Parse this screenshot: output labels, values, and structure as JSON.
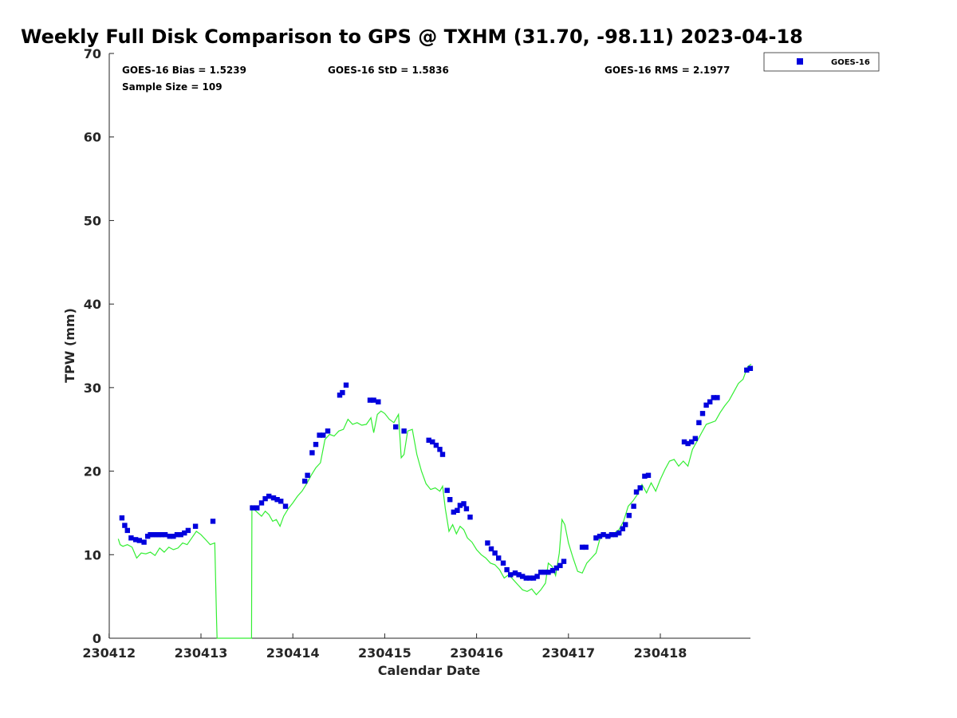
{
  "chart_data": {
    "type": "scatter",
    "title": "Weekly Full Disk Comparison to GPS @ TXHM (31.70, -98.11) 2023-04-18",
    "xlabel": "Calendar Date",
    "ylabel": "TPW (mm)",
    "xlim": [
      230412.0,
      230419.0
    ],
    "ylim": [
      0,
      70
    ],
    "x_ticks": [
      {
        "value": 230412,
        "label": "230412"
      },
      {
        "value": 230413,
        "label": "230413"
      },
      {
        "value": 230414,
        "label": "230414"
      },
      {
        "value": 230415,
        "label": "230415"
      },
      {
        "value": 230416,
        "label": "230416"
      },
      {
        "value": 230417,
        "label": "230417"
      },
      {
        "value": 230418,
        "label": "230418"
      }
    ],
    "y_ticks": [
      {
        "value": 0,
        "label": "0"
      },
      {
        "value": 10,
        "label": "10"
      },
      {
        "value": 20,
        "label": "20"
      },
      {
        "value": 30,
        "label": "30"
      },
      {
        "value": 40,
        "label": "40"
      },
      {
        "value": 50,
        "label": "50"
      },
      {
        "value": 60,
        "label": "60"
      },
      {
        "value": 70,
        "label": "70"
      }
    ],
    "grid": false,
    "legend_position": "outside-top-right",
    "stats": {
      "bias": "GOES-16 Bias = 1.5239",
      "std": "GOES-16 StD = 1.5836",
      "rms": "GOES-16 RMS = 2.1977",
      "sample": "Sample Size = 109"
    },
    "series": [
      {
        "name": "GOES-16",
        "kind": "markers",
        "color": "#0000dd",
        "x": [
          230412.14,
          230412.17,
          230412.2,
          230412.24,
          230412.29,
          230412.33,
          230412.38,
          230412.42,
          230412.45,
          230412.48,
          230412.51,
          230412.54,
          230412.57,
          230412.61,
          230412.66,
          230412.7,
          230412.74,
          230412.78,
          230412.82,
          230412.86,
          230412.94,
          230413.13,
          230413.56,
          230413.61,
          230413.66,
          230413.7,
          230413.74,
          230413.79,
          230413.83,
          230413.87,
          230413.92,
          230414.13,
          230414.16,
          230414.21,
          230414.25,
          230414.29,
          230414.33,
          230414.38,
          230414.51,
          230414.54,
          230414.58,
          230414.84,
          230414.88,
          230414.93,
          230415.12,
          230415.21,
          230415.48,
          230415.52,
          230415.56,
          230415.6,
          230415.63,
          230415.68,
          230415.71,
          230415.75,
          230415.79,
          230415.82,
          230415.86,
          230415.89,
          230415.93,
          230416.12,
          230416.16,
          230416.2,
          230416.24,
          230416.29,
          230416.33,
          230416.37,
          230416.42,
          230416.46,
          230416.5,
          230416.54,
          230416.58,
          230416.62,
          230416.66,
          230416.7,
          230416.74,
          230416.78,
          230416.83,
          230416.87,
          230416.91,
          230416.95,
          230417.15,
          230417.19,
          230417.3,
          230417.34,
          230417.38,
          230417.43,
          230417.47,
          230417.51,
          230417.55,
          230417.59,
          230417.62,
          230417.66,
          230417.71,
          230417.74,
          230417.78,
          230417.83,
          230417.87,
          230418.26,
          230418.3,
          230418.34,
          230418.38,
          230418.42,
          230418.46,
          230418.5,
          230418.54,
          230418.58,
          230418.62,
          230418.94,
          230418.98
        ],
        "y": [
          14.4,
          13.5,
          12.9,
          12.0,
          11.8,
          11.7,
          11.5,
          12.2,
          12.4,
          12.4,
          12.4,
          12.4,
          12.4,
          12.4,
          12.2,
          12.2,
          12.4,
          12.4,
          12.6,
          12.9,
          13.4,
          14.0,
          15.6,
          15.6,
          16.2,
          16.7,
          17.0,
          16.8,
          16.6,
          16.4,
          15.8,
          18.8,
          19.5,
          22.2,
          23.2,
          24.3,
          24.3,
          24.8,
          29.1,
          29.4,
          30.3,
          28.5,
          28.5,
          28.3,
          25.3,
          24.8,
          23.7,
          23.5,
          23.1,
          22.6,
          22.0,
          17.7,
          16.6,
          15.1,
          15.3,
          15.9,
          16.1,
          15.5,
          14.5,
          11.4,
          10.7,
          10.2,
          9.6,
          9.0,
          8.2,
          7.6,
          7.8,
          7.6,
          7.4,
          7.2,
          7.2,
          7.2,
          7.4,
          7.9,
          7.9,
          7.9,
          8.1,
          8.4,
          8.7,
          9.2,
          10.9,
          10.9,
          12.0,
          12.2,
          12.4,
          12.2,
          12.4,
          12.4,
          12.6,
          13.1,
          13.6,
          14.7,
          15.8,
          17.5,
          18.0,
          19.4,
          19.5,
          23.5,
          23.3,
          23.5,
          23.9,
          25.8,
          26.9,
          27.9,
          28.3,
          28.8,
          28.8,
          32.1,
          32.3
        ]
      },
      {
        "name": "",
        "kind": "line",
        "color": "#33ee33",
        "x": [
          230412.1,
          230412.12,
          230412.15,
          230412.2,
          230412.25,
          230412.3,
          230412.35,
          230412.4,
          230412.45,
          230412.5,
          230412.55,
          230412.6,
          230412.65,
          230412.7,
          230412.75,
          230412.8,
          230412.85,
          230412.9,
          230412.95,
          230413.0,
          230413.05,
          230413.1,
          230413.15,
          230413.17,
          230413.175,
          230413.2,
          230413.55,
          230413.555,
          230413.58,
          230413.62,
          230413.66,
          230413.7,
          230413.74,
          230413.78,
          230413.82,
          230413.86,
          230413.9,
          230413.95,
          230414.0,
          230414.05,
          230414.1,
          230414.15,
          230414.2,
          230414.25,
          230414.3,
          230414.35,
          230414.4,
          230414.45,
          230414.5,
          230414.55,
          230414.6,
          230414.65,
          230414.7,
          230414.75,
          230414.8,
          230414.85,
          230414.88,
          230414.92,
          230414.96,
          230415.0,
          230415.05,
          230415.1,
          230415.15,
          230415.18,
          230415.21,
          230415.25,
          230415.3,
          230415.35,
          230415.4,
          230415.45,
          230415.5,
          230415.55,
          230415.6,
          230415.63,
          230415.66,
          230415.7,
          230415.74,
          230415.78,
          230415.82,
          230415.86,
          230415.9,
          230415.95,
          230416.0,
          230416.05,
          230416.1,
          230416.15,
          230416.2,
          230416.25,
          230416.3,
          230416.35,
          230416.4,
          230416.45,
          230416.5,
          230416.55,
          230416.6,
          230416.65,
          230416.7,
          230416.75,
          230416.78,
          230416.82,
          230416.86,
          230416.9,
          230416.93,
          230416.96,
          230417.0,
          230417.05,
          230417.1,
          230417.15,
          230417.2,
          230417.25,
          230417.3,
          230417.35,
          230417.4,
          230417.45,
          230417.5,
          230417.55,
          230417.6,
          230417.65,
          230417.7,
          230417.75,
          230417.8,
          230417.85,
          230417.9,
          230417.95,
          230418.0,
          230418.05,
          230418.1,
          230418.15,
          230418.2,
          230418.25,
          230418.3,
          230418.35,
          230418.4,
          230418.45,
          230418.5,
          230418.55,
          230418.6,
          230418.65,
          230418.7,
          230418.75,
          230418.8,
          230418.85,
          230418.9,
          230418.95,
          230418.99
        ],
        "y": [
          11.9,
          11.2,
          11.0,
          11.2,
          10.9,
          9.6,
          10.2,
          10.1,
          10.3,
          9.9,
          10.8,
          10.3,
          10.9,
          10.6,
          10.8,
          11.4,
          11.2,
          12.0,
          12.8,
          12.4,
          11.8,
          11.2,
          11.4,
          2.0,
          0,
          0,
          0,
          15.8,
          15.4,
          15.0,
          14.6,
          15.2,
          14.8,
          14.0,
          14.2,
          13.4,
          14.6,
          15.5,
          16.2,
          17.0,
          17.6,
          18.5,
          19.5,
          20.4,
          21.0,
          23.8,
          24.4,
          24.2,
          24.8,
          25.0,
          26.2,
          25.6,
          25.8,
          25.5,
          25.6,
          26.4,
          24.6,
          26.8,
          27.2,
          26.9,
          26.2,
          25.8,
          26.8,
          21.6,
          22.0,
          24.8,
          25.0,
          22.0,
          20.0,
          18.5,
          17.8,
          18.0,
          17.6,
          18.2,
          15.5,
          12.8,
          13.6,
          12.5,
          13.4,
          13.0,
          12.0,
          11.5,
          10.6,
          10.0,
          9.6,
          9.0,
          8.8,
          8.2,
          7.2,
          7.6,
          7.0,
          6.4,
          5.8,
          5.6,
          5.9,
          5.2,
          5.8,
          6.6,
          9.0,
          8.6,
          7.5,
          10.2,
          14.2,
          13.6,
          11.4,
          9.6,
          8.0,
          7.8,
          9.0,
          9.6,
          10.2,
          12.2,
          12.4,
          12.0,
          12.6,
          13.0,
          14.0,
          15.8,
          16.4,
          17.2,
          18.4,
          17.4,
          18.6,
          17.6,
          19.0,
          20.2,
          21.2,
          21.4,
          20.6,
          21.2,
          20.6,
          22.6,
          23.6,
          24.6,
          25.6,
          25.8,
          26.0,
          27.0,
          27.8,
          28.5,
          29.5,
          30.5,
          31.0,
          32.5,
          32.8
        ]
      }
    ]
  }
}
